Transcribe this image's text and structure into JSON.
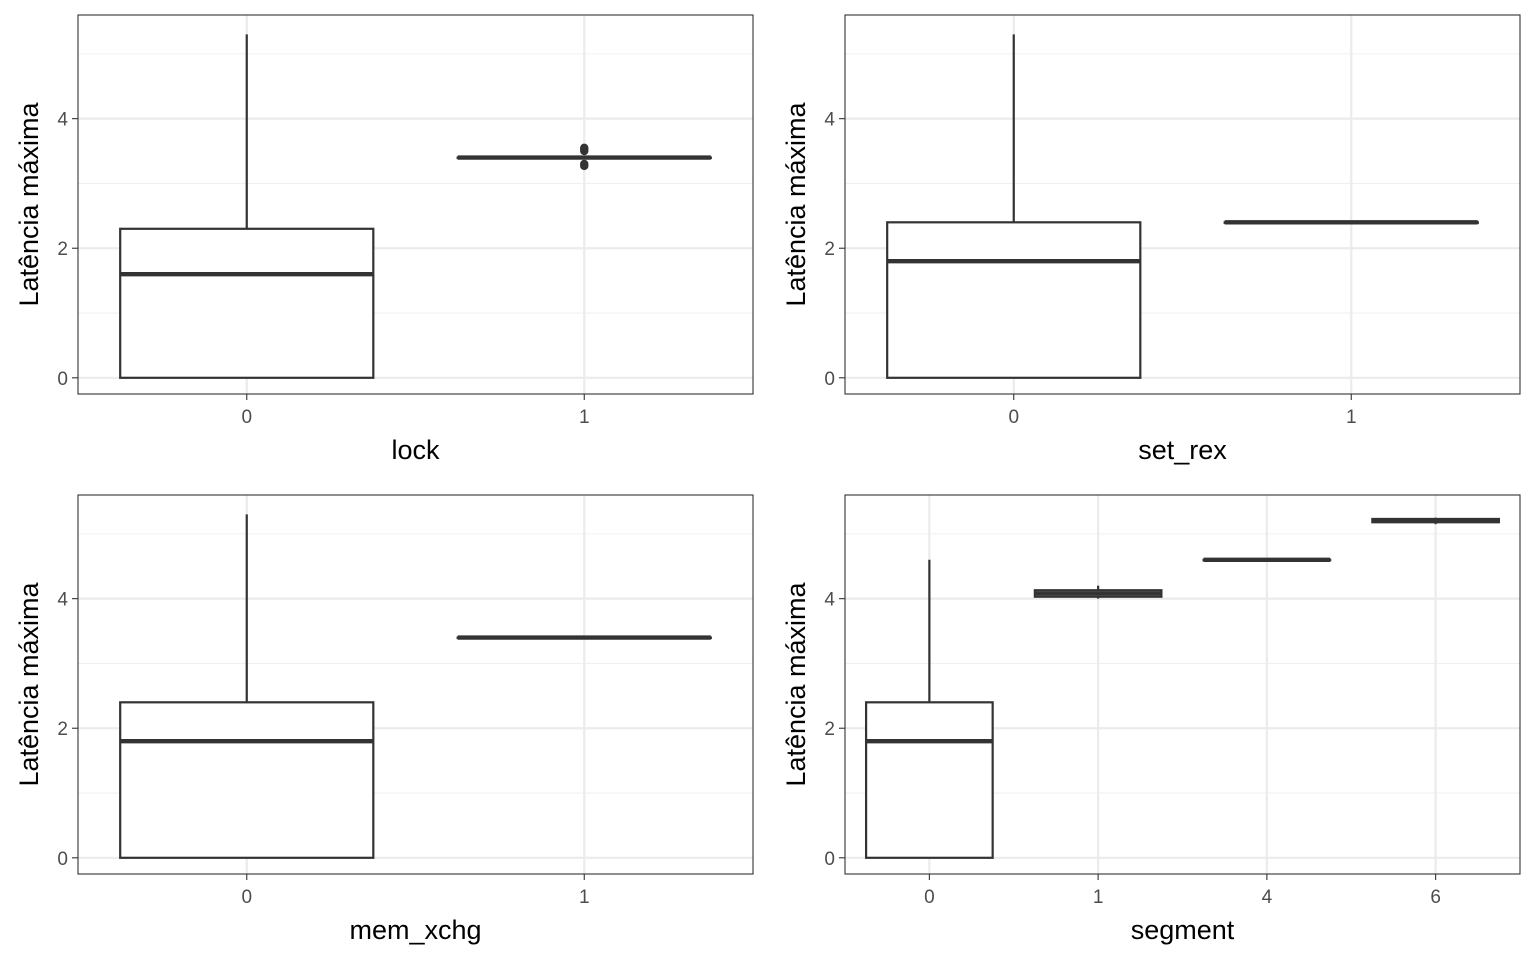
{
  "chart_data": [
    {
      "type": "boxplot",
      "xlabel": "lock",
      "ylabel": "Latência máxima",
      "ylim": [
        -0.25,
        5.6
      ],
      "yticks": [
        0,
        2,
        4
      ],
      "grid": true,
      "categories": [
        "0",
        "1"
      ],
      "boxes": [
        {
          "category": "0",
          "min": 0,
          "q1": 0,
          "median": 1.6,
          "q3": 2.3,
          "max": 5.3,
          "outliers": []
        },
        {
          "category": "1",
          "min": 3.4,
          "q1": 3.4,
          "median": 3.4,
          "q3": 3.4,
          "max": 3.4,
          "outliers": [
            3.27,
            3.3,
            3.5,
            3.53,
            3.55
          ]
        }
      ]
    },
    {
      "type": "boxplot",
      "xlabel": "set_rex",
      "ylabel": "Latência máxima",
      "ylim": [
        -0.25,
        5.6
      ],
      "yticks": [
        0,
        2,
        4
      ],
      "grid": true,
      "categories": [
        "0",
        "1"
      ],
      "boxes": [
        {
          "category": "0",
          "min": 0,
          "q1": 0,
          "median": 1.8,
          "q3": 2.4,
          "max": 5.3,
          "outliers": []
        },
        {
          "category": "1",
          "min": 2.4,
          "q1": 2.4,
          "median": 2.4,
          "q3": 2.4,
          "max": 2.4,
          "outliers": []
        }
      ]
    },
    {
      "type": "boxplot",
      "xlabel": "mem_xchg",
      "ylabel": "Latência máxima",
      "ylim": [
        -0.25,
        5.6
      ],
      "yticks": [
        0,
        2,
        4
      ],
      "grid": true,
      "categories": [
        "0",
        "1"
      ],
      "boxes": [
        {
          "category": "0",
          "min": 0,
          "q1": 0,
          "median": 1.8,
          "q3": 2.4,
          "max": 5.3,
          "outliers": []
        },
        {
          "category": "1",
          "min": 3.4,
          "q1": 3.4,
          "median": 3.4,
          "q3": 3.4,
          "max": 3.4,
          "outliers": []
        }
      ]
    },
    {
      "type": "boxplot",
      "xlabel": "segment",
      "ylabel": "Latência máxima",
      "ylim": [
        -0.25,
        5.6
      ],
      "yticks": [
        0,
        2,
        4
      ],
      "grid": true,
      "categories": [
        "0",
        "1",
        "4",
        "6"
      ],
      "boxes": [
        {
          "category": "0",
          "min": 0,
          "q1": 0,
          "median": 1.8,
          "q3": 2.4,
          "max": 4.6,
          "outliers": []
        },
        {
          "category": "1",
          "min": 4.0,
          "q1": 4.03,
          "median": 4.08,
          "q3": 4.13,
          "max": 4.2,
          "outliers": []
        },
        {
          "category": "4",
          "min": 4.6,
          "q1": 4.6,
          "median": 4.6,
          "q3": 4.6,
          "max": 4.6,
          "outliers": []
        },
        {
          "category": "6",
          "min": 5.15,
          "q1": 5.18,
          "median": 5.2,
          "q3": 5.23,
          "max": 5.25,
          "outliers": []
        }
      ]
    }
  ]
}
